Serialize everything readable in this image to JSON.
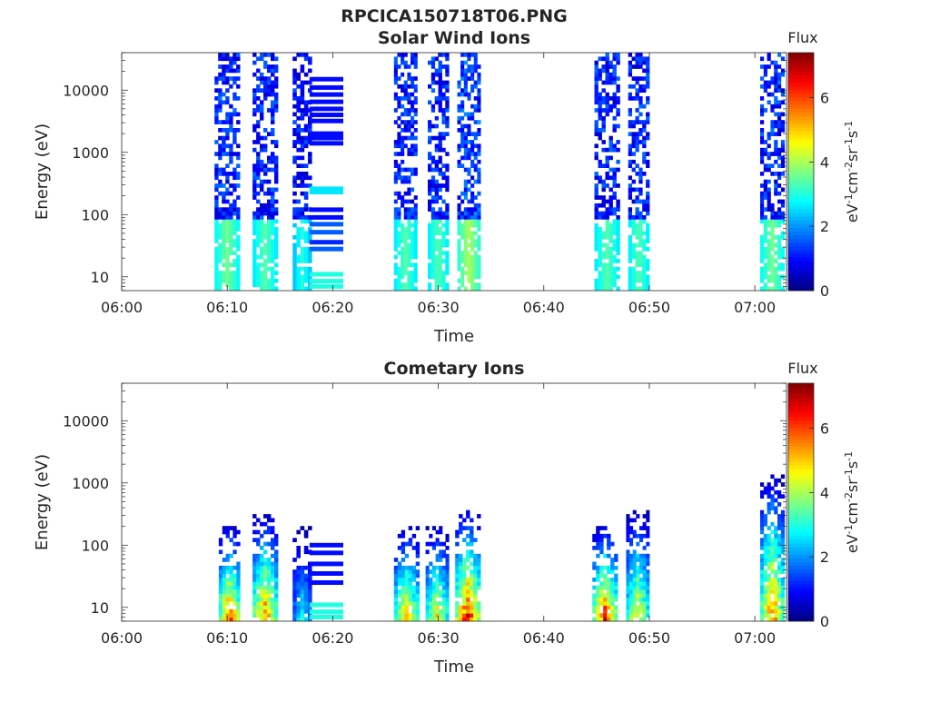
{
  "figure_title": "RPCICA150718T06.PNG",
  "chart_data": [
    {
      "type": "heatmap",
      "title": "Solar Wind Ions",
      "xlabel": "Time",
      "ylabel": "Energy (eV)",
      "y_scale": "log",
      "ylim": [
        6,
        40000
      ],
      "xlim": [
        "06:00",
        "07:03"
      ],
      "x_ticks": [
        "06:00",
        "06:10",
        "06:20",
        "06:30",
        "06:40",
        "06:50",
        "07:00"
      ],
      "y_ticks": [
        "10",
        "100",
        "1000",
        "10000"
      ],
      "colorbar": {
        "title": "Flux",
        "label": "eV-1cm-2sr-1s-1",
        "range": [
          0,
          7.4
        ],
        "ticks": [
          "0",
          "2",
          "4",
          "6"
        ]
      },
      "bursts": [
        {
          "t_start": "06:08.8",
          "t_end": "06:11.2",
          "e_min": 6,
          "e_max": 38000,
          "peak_flux": 3.6
        },
        {
          "t_start": "06:12.4",
          "t_end": "06:14.8",
          "e_min": 6,
          "e_max": 38000,
          "peak_flux": 3.4
        },
        {
          "t_start": "06:16.2",
          "t_end": "06:18.0",
          "e_min": 6,
          "e_max": 38000,
          "peak_flux": 3.0
        },
        {
          "t_start": "06:25.8",
          "t_end": "06:28.0",
          "e_min": 6,
          "e_max": 38000,
          "peak_flux": 3.4
        },
        {
          "t_start": "06:29.0",
          "t_end": "06:31.0",
          "e_min": 6,
          "e_max": 38000,
          "peak_flux": 3.4
        },
        {
          "t_start": "06:31.8",
          "t_end": "06:34.0",
          "e_min": 6,
          "e_max": 38000,
          "peak_flux": 4.0
        },
        {
          "t_start": "06:44.8",
          "t_end": "06:47.2",
          "e_min": 6,
          "e_max": 38000,
          "peak_flux": 3.4
        },
        {
          "t_start": "06:48.0",
          "t_end": "06:50.0",
          "e_min": 6,
          "e_max": 38000,
          "peak_flux": 3.4
        },
        {
          "t_start": "07:00.5",
          "t_end": "07:02.8",
          "e_min": 6,
          "e_max": 38000,
          "peak_flux": 3.6
        }
      ],
      "gap_block": {
        "t_start": "06:17.8",
        "t_end": "06:21.0",
        "bands": [
          {
            "energy": 15000,
            "flux": 1.0
          },
          {
            "energy": 11000,
            "flux": 1.0
          },
          {
            "energy": 8500,
            "flux": 1.0
          },
          {
            "energy": 6500,
            "flux": 1.0
          },
          {
            "energy": 5000,
            "flux": 1.0
          },
          {
            "energy": 4000,
            "flux": 1.0
          },
          {
            "energy": 3200,
            "flux": 1.0
          },
          {
            "energy": 2000,
            "flux": 1.0
          },
          {
            "energy": 1700,
            "flux": 1.0
          },
          {
            "energy": 1400,
            "flux": 1.0
          },
          {
            "energy": 260,
            "flux": 2.6
          },
          {
            "energy": 230,
            "flux": 2.6
          },
          {
            "energy": 120,
            "flux": 1.0
          },
          {
            "energy": 90,
            "flux": 1.0
          },
          {
            "energy": 70,
            "flux": 1.6
          },
          {
            "energy": 52,
            "flux": 1.6
          },
          {
            "energy": 36,
            "flux": 1.2
          },
          {
            "energy": 28,
            "flux": 1.6
          },
          {
            "energy": 11,
            "flux": 3.0
          },
          {
            "energy": 8.5,
            "flux": 3.0
          },
          {
            "energy": 7,
            "flux": 3.0
          }
        ]
      }
    },
    {
      "type": "heatmap",
      "title": "Cometary Ions",
      "xlabel": "Time",
      "ylabel": "Energy (eV)",
      "y_scale": "log",
      "ylim": [
        6,
        40000
      ],
      "xlim": [
        "06:00",
        "07:03"
      ],
      "x_ticks": [
        "06:00",
        "06:10",
        "06:20",
        "06:30",
        "06:40",
        "06:50",
        "07:00"
      ],
      "y_ticks": [
        "10",
        "100",
        "1000",
        "10000"
      ],
      "colorbar": {
        "title": "Flux",
        "label": "eV-1cm-2sr-1s-1",
        "range": [
          0,
          7.4
        ],
        "ticks": [
          "0",
          "2",
          "4",
          "6"
        ]
      },
      "bursts": [
        {
          "t_start": "06:09.2",
          "t_end": "06:11.2",
          "e_min": 6,
          "e_max": 200,
          "peak_flux": 6.4
        },
        {
          "t_start": "06:12.4",
          "t_end": "06:14.8",
          "e_min": 6,
          "e_max": 300,
          "peak_flux": 6.2
        },
        {
          "t_start": "06:16.2",
          "t_end": "06:18.0",
          "e_min": 6,
          "e_max": 200,
          "peak_flux": 3.0
        },
        {
          "t_start": "06:25.8",
          "t_end": "06:28.2",
          "e_min": 6,
          "e_max": 200,
          "peak_flux": 5.6
        },
        {
          "t_start": "06:28.8",
          "t_end": "06:31.0",
          "e_min": 6,
          "e_max": 200,
          "peak_flux": 5.2
        },
        {
          "t_start": "06:31.6",
          "t_end": "06:34.0",
          "e_min": 6,
          "e_max": 350,
          "peak_flux": 7.0
        },
        {
          "t_start": "06:44.6",
          "t_end": "06:47.0",
          "e_min": 6,
          "e_max": 200,
          "peak_flux": 6.6
        },
        {
          "t_start": "06:47.8",
          "t_end": "06:50.0",
          "e_min": 6,
          "e_max": 350,
          "peak_flux": 5.2
        },
        {
          "t_start": "07:00.5",
          "t_end": "07:02.8",
          "e_min": 6,
          "e_max": 1300,
          "peak_flux": 6.2
        }
      ],
      "gap_block": {
        "t_start": "06:17.8",
        "t_end": "06:21.0",
        "bands": [
          {
            "energy": 100,
            "flux": 1.0
          },
          {
            "energy": 75,
            "flux": 1.0
          },
          {
            "energy": 50,
            "flux": 1.0
          },
          {
            "energy": 35,
            "flux": 1.0
          },
          {
            "energy": 25,
            "flux": 1.0
          },
          {
            "energy": 11,
            "flux": 3.0
          },
          {
            "energy": 8.5,
            "flux": 3.0
          },
          {
            "energy": 7,
            "flux": 3.0
          }
        ]
      }
    }
  ]
}
